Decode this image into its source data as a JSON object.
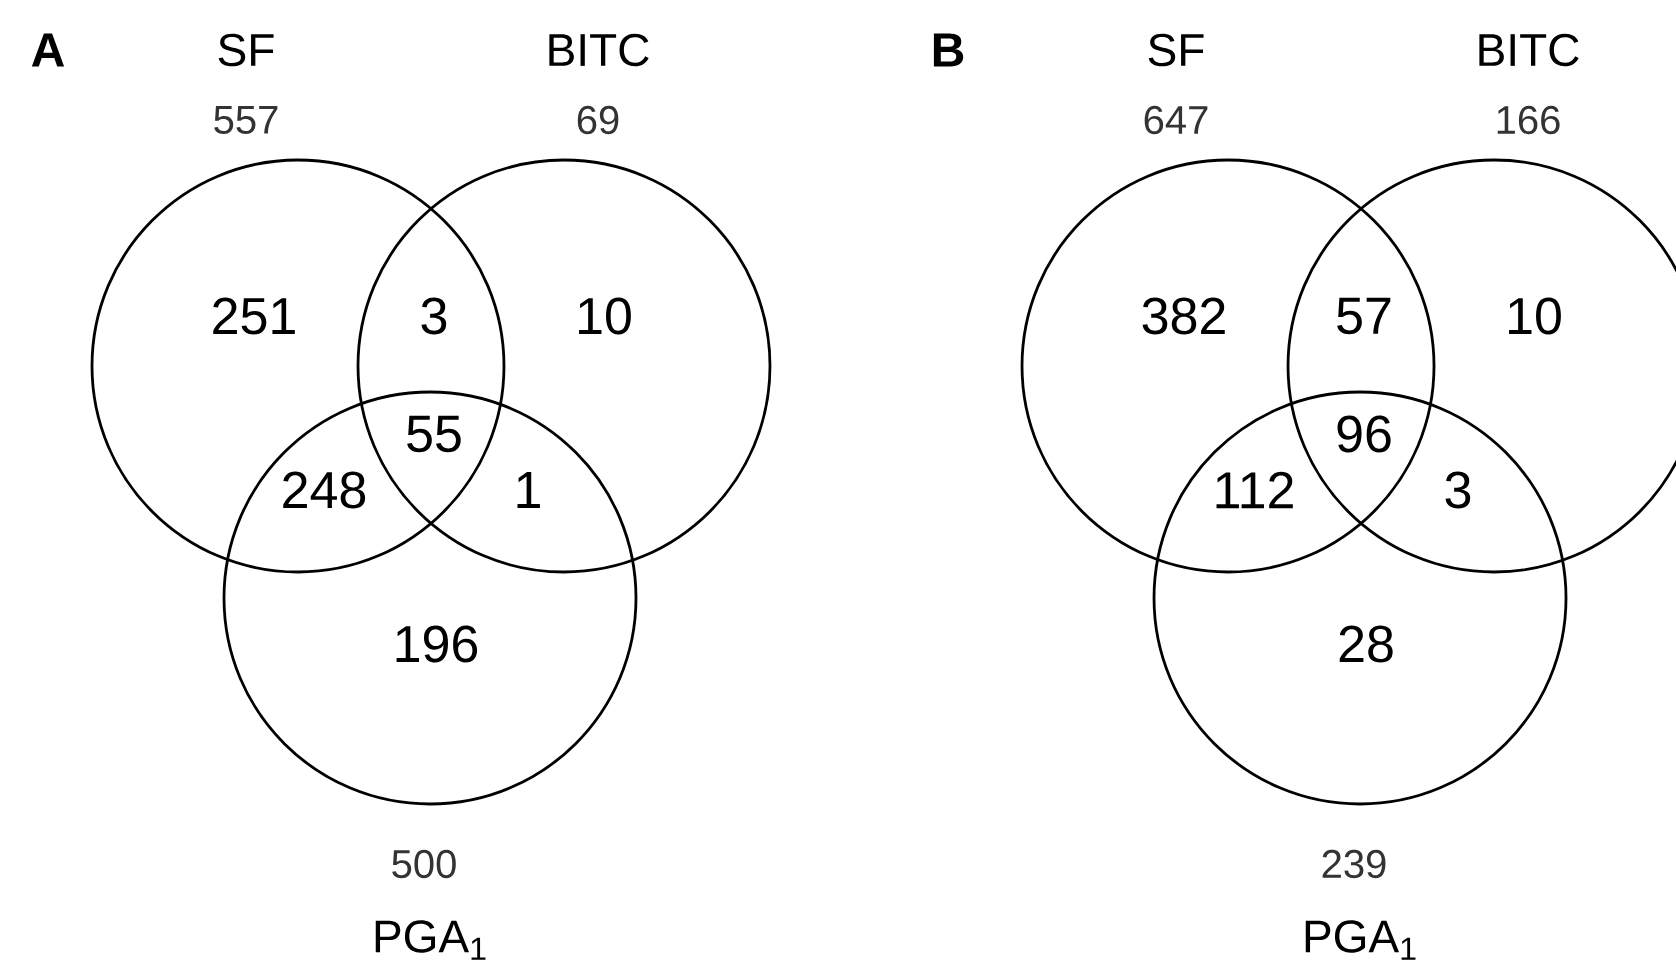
{
  "chart_data": [
    {
      "type": "other",
      "title": "A",
      "categories": [
        "SF",
        "BITC",
        "PGA$_{1}$"
      ],
      "values": [
        557,
        69,
        500
      ],
      "data_labels": true,
      "annotations": [
        "251",
        "3",
        "10",
        "55",
        "248",
        "1",
        "196"
      ]
    },
    {
      "type": "other",
      "title": "B",
      "categories": [
        "SF",
        "BITC",
        "PGA$_{1}$"
      ],
      "values": [
        647,
        166,
        239
      ],
      "data_labels": true,
      "annotations": [
        "382",
        "57",
        "10",
        "96",
        "112",
        "3",
        "28"
      ]
    }
  ]
}
